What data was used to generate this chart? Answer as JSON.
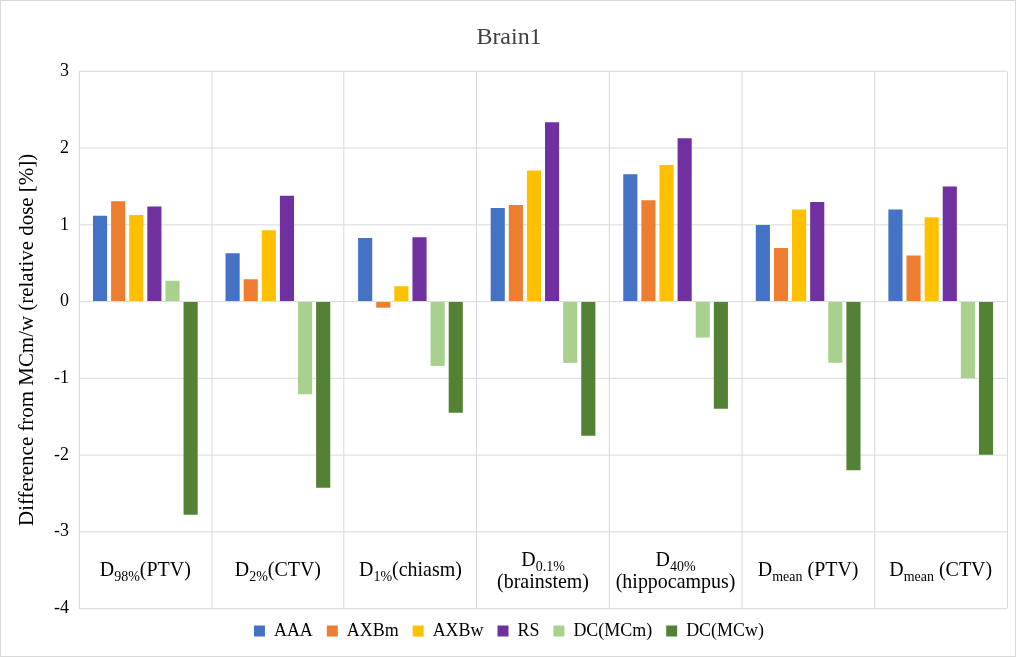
{
  "chart_data": {
    "type": "bar",
    "title": "Brain1",
    "ylabel": "Difference from MCm/w (relative dose [%])",
    "categories": [
      "D$_{98%}$(PTV)",
      "D$_{2%}$(CTV)",
      "D$_{1%}$(chiasm)",
      "D$_{0.1%}$ (brainstem)",
      "D$_{40%}$ (hippocampus)",
      "D$_{mean}$ (PTV)",
      "D$_{mean}$ (CTV)"
    ],
    "series": [
      {
        "name": "AAA",
        "color": "#4472c4",
        "values": [
          1.12,
          0.63,
          0.83,
          1.22,
          1.66,
          1.0,
          1.2
        ]
      },
      {
        "name": "AXBm",
        "color": "#ed7d31",
        "values": [
          1.31,
          0.29,
          -0.08,
          1.26,
          1.32,
          0.7,
          0.6
        ]
      },
      {
        "name": "AXBw",
        "color": "#ffc000",
        "values": [
          1.13,
          0.93,
          0.2,
          1.71,
          1.78,
          1.2,
          1.1
        ]
      },
      {
        "name": "RS",
        "color": "#7030a0",
        "values": [
          1.24,
          1.38,
          0.84,
          2.34,
          2.13,
          1.3,
          1.5
        ]
      },
      {
        "name": "DC(MCm)",
        "color": "#a9d18e",
        "values": [
          0.27,
          -1.21,
          -0.84,
          -0.8,
          -0.47,
          -0.8,
          -1.0
        ]
      },
      {
        "name": "DC(MCw)",
        "color": "#548235",
        "values": [
          -2.78,
          -2.43,
          -1.45,
          -1.75,
          -1.4,
          -2.2,
          -2.0
        ]
      }
    ],
    "ylim": [
      -4,
      3
    ],
    "yticks": [
      -4,
      -3,
      -2,
      -1,
      0,
      1,
      2,
      3
    ],
    "grid": true,
    "legend": "bottom"
  }
}
